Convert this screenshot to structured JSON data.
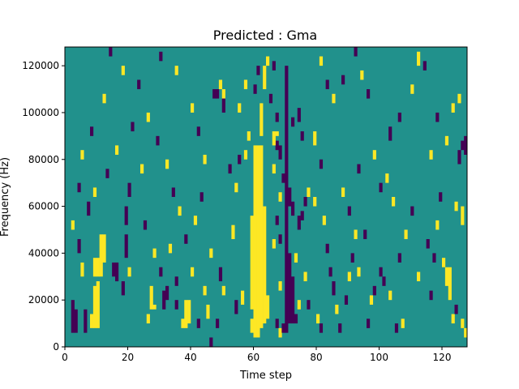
{
  "chart_data": {
    "type": "heatmap",
    "title": "Predicted : Gma",
    "xlabel": "Time step",
    "ylabel": "Frequency (Hz)",
    "xlim": [
      0,
      128
    ],
    "ylim": [
      0,
      128000
    ],
    "x_ticks": [
      0,
      20,
      40,
      60,
      80,
      100,
      120
    ],
    "y_ticks": [
      0,
      20000,
      40000,
      60000,
      80000,
      100000,
      120000
    ],
    "x_tick_labels": [
      "0",
      "20",
      "40",
      "60",
      "80",
      "100",
      "120"
    ],
    "y_tick_labels": [
      "0",
      "20000",
      "40000",
      "60000",
      "80000",
      "100000",
      "120000"
    ],
    "grid": false,
    "colormap": {
      "low": "#440154",
      "mid": "#21918c",
      "high": "#fde725"
    },
    "background_value": 0,
    "cell_values": "1 = high (yellow), -1 = low (purple); cells are 1 time step by 2000 Hz",
    "cells": [
      {
        "x": 60,
        "y0": 4000,
        "y1": 86000,
        "v": 1
      },
      {
        "x": 61,
        "y0": 4000,
        "y1": 86000,
        "v": 1
      },
      {
        "x": 62,
        "y0": 8000,
        "y1": 86000,
        "v": 1
      },
      {
        "x": 63,
        "y0": 10000,
        "y1": 60000,
        "v": 1
      },
      {
        "x": 59,
        "y0": 16000,
        "y1": 56000,
        "v": 1
      },
      {
        "x": 62,
        "y0": 90000,
        "y1": 104000,
        "v": 1
      },
      {
        "x": 63,
        "y0": 110000,
        "y1": 120000,
        "v": 1
      },
      {
        "x": 59,
        "y0": 6000,
        "y1": 12000,
        "v": 1
      },
      {
        "x": 64,
        "y0": 12000,
        "y1": 22000,
        "v": 1
      },
      {
        "x": 58,
        "y0": 88000,
        "y1": 92000,
        "v": 1
      },
      {
        "x": 70,
        "y0": 6000,
        "y1": 120000,
        "v": -1
      },
      {
        "x": 71,
        "y0": 10000,
        "y1": 40000,
        "v": -1
      },
      {
        "x": 72,
        "y0": 10000,
        "y1": 30000,
        "v": -1
      },
      {
        "x": 69,
        "y0": 70000,
        "y1": 74000,
        "v": -1
      },
      {
        "x": 68,
        "y0": 80000,
        "y1": 86000,
        "v": -1
      },
      {
        "x": 71,
        "y0": 60000,
        "y1": 68000,
        "v": -1
      },
      {
        "x": 72,
        "y0": 56000,
        "y1": 62000,
        "v": -1
      },
      {
        "x": 67,
        "y0": 84000,
        "y1": 88000,
        "v": -1
      },
      {
        "x": 66,
        "y0": 86000,
        "y1": 92000,
        "v": 1
      },
      {
        "x": 67,
        "y0": 90000,
        "y1": 92000,
        "v": 1
      },
      {
        "x": 2,
        "y0": 6000,
        "y1": 20000,
        "v": -1
      },
      {
        "x": 3,
        "y0": 6000,
        "y1": 16000,
        "v": -1
      },
      {
        "x": 6,
        "y0": 6000,
        "y1": 16000,
        "v": -1
      },
      {
        "x": 8,
        "y0": 8000,
        "y1": 14000,
        "v": 1
      },
      {
        "x": 9,
        "y0": 8000,
        "y1": 26000,
        "v": 1
      },
      {
        "x": 10,
        "y0": 8000,
        "y1": 28000,
        "v": 1
      },
      {
        "x": 9,
        "y0": 30000,
        "y1": 38000,
        "v": 1
      },
      {
        "x": 10,
        "y0": 30000,
        "y1": 38000,
        "v": 1
      },
      {
        "x": 11,
        "y0": 30000,
        "y1": 48000,
        "v": 1
      },
      {
        "x": 12,
        "y0": 36000,
        "y1": 48000,
        "v": 1
      },
      {
        "x": 15,
        "y0": 30000,
        "y1": 36000,
        "v": -1
      },
      {
        "x": 16,
        "y0": 28000,
        "y1": 36000,
        "v": -1
      },
      {
        "x": 18,
        "y0": 22000,
        "y1": 28000,
        "v": -1
      },
      {
        "x": 19,
        "y0": 38000,
        "y1": 48000,
        "v": -1
      },
      {
        "x": 19,
        "y0": 52000,
        "y1": 60000,
        "v": -1
      },
      {
        "x": 20,
        "y0": 64000,
        "y1": 70000,
        "v": -1
      },
      {
        "x": 20,
        "y0": 30000,
        "y1": 34000,
        "v": 1
      },
      {
        "x": 26,
        "y0": 10000,
        "y1": 14000,
        "v": 1
      },
      {
        "x": 27,
        "y0": 16000,
        "y1": 26000,
        "v": 1
      },
      {
        "x": 28,
        "y0": 16000,
        "y1": 18000,
        "v": 1
      },
      {
        "x": 31,
        "y0": 16000,
        "y1": 24000,
        "v": -1
      },
      {
        "x": 32,
        "y0": 20000,
        "y1": 26000,
        "v": -1
      },
      {
        "x": 35,
        "y0": 16000,
        "y1": 20000,
        "v": -1
      },
      {
        "x": 37,
        "y0": 8000,
        "y1": 12000,
        "v": 1
      },
      {
        "x": 38,
        "y0": 8000,
        "y1": 20000,
        "v": 1
      },
      {
        "x": 39,
        "y0": 10000,
        "y1": 20000,
        "v": 1
      },
      {
        "x": 40,
        "y0": 30000,
        "y1": 34000,
        "v": 1
      },
      {
        "x": 45,
        "y0": 12000,
        "y1": 18000,
        "v": 1
      },
      {
        "x": 46,
        "y0": 0,
        "y1": 4000,
        "v": -1
      },
      {
        "x": 48,
        "y0": 8000,
        "y1": 12000,
        "v": -1
      },
      {
        "x": 49,
        "y0": 28000,
        "y1": 34000,
        "v": -1
      },
      {
        "x": 50,
        "y0": 22000,
        "y1": 26000,
        "v": 1
      },
      {
        "x": 46,
        "y0": 38000,
        "y1": 42000,
        "v": 1
      },
      {
        "x": 53,
        "y0": 46000,
        "y1": 52000,
        "v": 1
      },
      {
        "x": 54,
        "y0": 14000,
        "y1": 20000,
        "v": -1
      },
      {
        "x": 56,
        "y0": 18000,
        "y1": 24000,
        "v": 1
      },
      {
        "x": 54,
        "y0": 66000,
        "y1": 70000,
        "v": 1
      },
      {
        "x": 52,
        "y0": 74000,
        "y1": 78000,
        "v": -1
      },
      {
        "x": 55,
        "y0": 78000,
        "y1": 82000,
        "v": -1
      },
      {
        "x": 57,
        "y0": 80000,
        "y1": 84000,
        "v": 1
      },
      {
        "x": 47,
        "y0": 106000,
        "y1": 110000,
        "v": -1
      },
      {
        "x": 48,
        "y0": 106000,
        "y1": 110000,
        "v": -1
      },
      {
        "x": 50,
        "y0": 106000,
        "y1": 110000,
        "v": 1
      },
      {
        "x": 49,
        "y0": 110000,
        "y1": 114000,
        "v": 1
      },
      {
        "x": 50,
        "y0": 100000,
        "y1": 106000,
        "v": -1
      },
      {
        "x": 55,
        "y0": 100000,
        "y1": 104000,
        "v": 1
      },
      {
        "x": 57,
        "y0": 110000,
        "y1": 114000,
        "v": 1
      },
      {
        "x": 60,
        "y0": 108000,
        "y1": 112000,
        "v": -1
      },
      {
        "x": 61,
        "y0": 116000,
        "y1": 120000,
        "v": -1
      },
      {
        "x": 64,
        "y0": 120000,
        "y1": 124000,
        "v": 1
      },
      {
        "x": 66,
        "y0": 118000,
        "y1": 122000,
        "v": -1
      },
      {
        "x": 65,
        "y0": 104000,
        "y1": 108000,
        "v": -1
      },
      {
        "x": 67,
        "y0": 96000,
        "y1": 100000,
        "v": -1
      },
      {
        "x": 66,
        "y0": 74000,
        "y1": 78000,
        "v": 1
      },
      {
        "x": 68,
        "y0": 62000,
        "y1": 66000,
        "v": 1
      },
      {
        "x": 67,
        "y0": 52000,
        "y1": 56000,
        "v": -1
      },
      {
        "x": 68,
        "y0": 44000,
        "y1": 48000,
        "v": -1
      },
      {
        "x": 66,
        "y0": 42000,
        "y1": 46000,
        "v": 1
      },
      {
        "x": 68,
        "y0": 24000,
        "y1": 28000,
        "v": 1
      },
      {
        "x": 67,
        "y0": 8000,
        "y1": 12000,
        "v": -1
      },
      {
        "x": 68,
        "y0": 4000,
        "y1": 8000,
        "v": 1
      },
      {
        "x": 69,
        "y0": 6000,
        "y1": 10000,
        "v": -1
      },
      {
        "x": 73,
        "y0": 10000,
        "y1": 14000,
        "v": -1
      },
      {
        "x": 74,
        "y0": 16000,
        "y1": 20000,
        "v": 1
      },
      {
        "x": 73,
        "y0": 36000,
        "y1": 40000,
        "v": 1
      },
      {
        "x": 74,
        "y0": 50000,
        "y1": 56000,
        "v": -1
      },
      {
        "x": 75,
        "y0": 54000,
        "y1": 58000,
        "v": -1
      },
      {
        "x": 76,
        "y0": 60000,
        "y1": 64000,
        "v": -1
      },
      {
        "x": 74,
        "y0": 96000,
        "y1": 102000,
        "v": -1
      },
      {
        "x": 75,
        "y0": 88000,
        "y1": 92000,
        "v": -1
      },
      {
        "x": 72,
        "y0": 94000,
        "y1": 98000,
        "v": -1
      },
      {
        "x": 77,
        "y0": 64000,
        "y1": 68000,
        "v": 1
      },
      {
        "x": 79,
        "y0": 60000,
        "y1": 64000,
        "v": 1
      },
      {
        "x": 76,
        "y0": 28000,
        "y1": 32000,
        "v": 1
      },
      {
        "x": 77,
        "y0": 16000,
        "y1": 20000,
        "v": -1
      },
      {
        "x": 80,
        "y0": 10000,
        "y1": 14000,
        "v": 1
      },
      {
        "x": 81,
        "y0": 6000,
        "y1": 10000,
        "v": -1
      },
      {
        "x": 82,
        "y0": 52000,
        "y1": 56000,
        "v": 1
      },
      {
        "x": 83,
        "y0": 40000,
        "y1": 44000,
        "v": -1
      },
      {
        "x": 84,
        "y0": 30000,
        "y1": 34000,
        "v": -1
      },
      {
        "x": 85,
        "y0": 22000,
        "y1": 28000,
        "v": -1
      },
      {
        "x": 86,
        "y0": 14000,
        "y1": 18000,
        "v": 1
      },
      {
        "x": 87,
        "y0": 6000,
        "y1": 10000,
        "v": -1
      },
      {
        "x": 89,
        "y0": 18000,
        "y1": 22000,
        "v": -1
      },
      {
        "x": 90,
        "y0": 28000,
        "y1": 32000,
        "v": 1
      },
      {
        "x": 91,
        "y0": 36000,
        "y1": 40000,
        "v": -1
      },
      {
        "x": 92,
        "y0": 46000,
        "y1": 50000,
        "v": 1
      },
      {
        "x": 93,
        "y0": 30000,
        "y1": 34000,
        "v": 1
      },
      {
        "x": 96,
        "y0": 8000,
        "y1": 12000,
        "v": -1
      },
      {
        "x": 97,
        "y0": 18000,
        "y1": 22000,
        "v": 1
      },
      {
        "x": 98,
        "y0": 22000,
        "y1": 26000,
        "v": -1
      },
      {
        "x": 100,
        "y0": 30000,
        "y1": 34000,
        "v": -1
      },
      {
        "x": 101,
        "y0": 26000,
        "y1": 30000,
        "v": -1
      },
      {
        "x": 103,
        "y0": 20000,
        "y1": 24000,
        "v": 1
      },
      {
        "x": 105,
        "y0": 6000,
        "y1": 10000,
        "v": -1
      },
      {
        "x": 107,
        "y0": 8000,
        "y1": 12000,
        "v": 1
      },
      {
        "x": 108,
        "y0": 46000,
        "y1": 50000,
        "v": 1
      },
      {
        "x": 110,
        "y0": 56000,
        "y1": 60000,
        "v": -1
      },
      {
        "x": 115,
        "y0": 42000,
        "y1": 46000,
        "v": -1
      },
      {
        "x": 117,
        "y0": 36000,
        "y1": 40000,
        "v": -1
      },
      {
        "x": 120,
        "y0": 34000,
        "y1": 38000,
        "v": 1
      },
      {
        "x": 121,
        "y0": 26000,
        "y1": 34000,
        "v": 1
      },
      {
        "x": 122,
        "y0": 20000,
        "y1": 34000,
        "v": 1
      },
      {
        "x": 123,
        "y0": 10000,
        "y1": 14000,
        "v": 1
      },
      {
        "x": 124,
        "y0": 14000,
        "y1": 18000,
        "v": -1
      },
      {
        "x": 126,
        "y0": 8000,
        "y1": 12000,
        "v": 1
      },
      {
        "x": 127,
        "y0": 4000,
        "y1": 8000,
        "v": 1
      },
      {
        "x": 126,
        "y0": 52000,
        "y1": 60000,
        "v": 1
      },
      {
        "x": 124,
        "y0": 58000,
        "y1": 62000,
        "v": 1
      },
      {
        "x": 125,
        "y0": 78000,
        "y1": 84000,
        "v": -1
      },
      {
        "x": 126,
        "y0": 84000,
        "y1": 88000,
        "v": -1
      },
      {
        "x": 127,
        "y0": 82000,
        "y1": 90000,
        "v": -1
      },
      {
        "x": 125,
        "y0": 104000,
        "y1": 108000,
        "v": 1
      },
      {
        "x": 123,
        "y0": 100000,
        "y1": 104000,
        "v": 1
      },
      {
        "x": 121,
        "y0": 86000,
        "y1": 90000,
        "v": 1
      },
      {
        "x": 112,
        "y0": 120000,
        "y1": 126000,
        "v": 1
      },
      {
        "x": 114,
        "y0": 118000,
        "y1": 122000,
        "v": -1
      },
      {
        "x": 110,
        "y0": 108000,
        "y1": 112000,
        "v": 1
      },
      {
        "x": 106,
        "y0": 96000,
        "y1": 100000,
        "v": -1
      },
      {
        "x": 103,
        "y0": 88000,
        "y1": 94000,
        "v": -1
      },
      {
        "x": 102,
        "y0": 70000,
        "y1": 74000,
        "v": 1
      },
      {
        "x": 100,
        "y0": 66000,
        "y1": 70000,
        "v": -1
      },
      {
        "x": 98,
        "y0": 80000,
        "y1": 84000,
        "v": 1
      },
      {
        "x": 96,
        "y0": 106000,
        "y1": 110000,
        "v": -1
      },
      {
        "x": 94,
        "y0": 114000,
        "y1": 118000,
        "v": 1
      },
      {
        "x": 92,
        "y0": 124000,
        "y1": 128000,
        "v": -1
      },
      {
        "x": 88,
        "y0": 112000,
        "y1": 116000,
        "v": -1
      },
      {
        "x": 85,
        "y0": 104000,
        "y1": 108000,
        "v": 1
      },
      {
        "x": 83,
        "y0": 110000,
        "y1": 114000,
        "v": -1
      },
      {
        "x": 81,
        "y0": 120000,
        "y1": 124000,
        "v": 1
      },
      {
        "x": 79,
        "y0": 86000,
        "y1": 92000,
        "v": 1
      },
      {
        "x": 81,
        "y0": 76000,
        "y1": 80000,
        "v": -1
      },
      {
        "x": 88,
        "y0": 64000,
        "y1": 68000,
        "v": 1
      },
      {
        "x": 90,
        "y0": 56000,
        "y1": 60000,
        "v": -1
      },
      {
        "x": 93,
        "y0": 74000,
        "y1": 78000,
        "v": -1
      },
      {
        "x": 95,
        "y0": 46000,
        "y1": 50000,
        "v": -1
      },
      {
        "x": 104,
        "y0": 60000,
        "y1": 64000,
        "v": 1
      },
      {
        "x": 106,
        "y0": 36000,
        "y1": 40000,
        "v": -1
      },
      {
        "x": 112,
        "y0": 28000,
        "y1": 32000,
        "v": 1
      },
      {
        "x": 116,
        "y0": 20000,
        "y1": 24000,
        "v": -1
      },
      {
        "x": 118,
        "y0": 50000,
        "y1": 54000,
        "v": 1
      },
      {
        "x": 119,
        "y0": 62000,
        "y1": 66000,
        "v": -1
      },
      {
        "x": 116,
        "y0": 80000,
        "y1": 84000,
        "v": 1
      },
      {
        "x": 118,
        "y0": 96000,
        "y1": 100000,
        "v": -1
      },
      {
        "x": 23,
        "y0": 110000,
        "y1": 114000,
        "v": -1
      },
      {
        "x": 26,
        "y0": 96000,
        "y1": 100000,
        "v": 1
      },
      {
        "x": 29,
        "y0": 86000,
        "y1": 90000,
        "v": -1
      },
      {
        "x": 32,
        "y0": 76000,
        "y1": 80000,
        "v": 1
      },
      {
        "x": 34,
        "y0": 64000,
        "y1": 68000,
        "v": -1
      },
      {
        "x": 36,
        "y0": 56000,
        "y1": 60000,
        "v": 1
      },
      {
        "x": 38,
        "y0": 44000,
        "y1": 48000,
        "v": -1
      },
      {
        "x": 41,
        "y0": 52000,
        "y1": 56000,
        "v": 1
      },
      {
        "x": 43,
        "y0": 62000,
        "y1": 66000,
        "v": -1
      },
      {
        "x": 44,
        "y0": 78000,
        "y1": 82000,
        "v": 1
      },
      {
        "x": 42,
        "y0": 90000,
        "y1": 94000,
        "v": -1
      },
      {
        "x": 40,
        "y0": 100000,
        "y1": 104000,
        "v": 1
      },
      {
        "x": 35,
        "y0": 116000,
        "y1": 120000,
        "v": 1
      },
      {
        "x": 30,
        "y0": 122000,
        "y1": 126000,
        "v": -1
      },
      {
        "x": 18,
        "y0": 116000,
        "y1": 120000,
        "v": 1
      },
      {
        "x": 14,
        "y0": 124000,
        "y1": 128000,
        "v": -1
      },
      {
        "x": 12,
        "y0": 104000,
        "y1": 108000,
        "v": 1
      },
      {
        "x": 8,
        "y0": 90000,
        "y1": 94000,
        "v": -1
      },
      {
        "x": 5,
        "y0": 80000,
        "y1": 84000,
        "v": 1
      },
      {
        "x": 4,
        "y0": 66000,
        "y1": 70000,
        "v": -1
      },
      {
        "x": 2,
        "y0": 50000,
        "y1": 54000,
        "v": 1
      },
      {
        "x": 4,
        "y0": 40000,
        "y1": 46000,
        "v": -1
      },
      {
        "x": 5,
        "y0": 30000,
        "y1": 36000,
        "v": 1
      },
      {
        "x": 7,
        "y0": 56000,
        "y1": 62000,
        "v": -1
      },
      {
        "x": 9,
        "y0": 64000,
        "y1": 68000,
        "v": 1
      },
      {
        "x": 13,
        "y0": 72000,
        "y1": 76000,
        "v": -1
      },
      {
        "x": 16,
        "y0": 82000,
        "y1": 86000,
        "v": 1
      },
      {
        "x": 21,
        "y0": 92000,
        "y1": 96000,
        "v": -1
      },
      {
        "x": 24,
        "y0": 74000,
        "y1": 78000,
        "v": 1
      },
      {
        "x": 25,
        "y0": 50000,
        "y1": 54000,
        "v": -1
      },
      {
        "x": 28,
        "y0": 38000,
        "y1": 42000,
        "v": 1
      },
      {
        "x": 30,
        "y0": 30000,
        "y1": 34000,
        "v": -1
      },
      {
        "x": 33,
        "y0": 40000,
        "y1": 44000,
        "v": 1
      },
      {
        "x": 35,
        "y0": 26000,
        "y1": 30000,
        "v": -1
      },
      {
        "x": 42,
        "y0": 8000,
        "y1": 12000,
        "v": -1
      },
      {
        "x": 44,
        "y0": 22000,
        "y1": 26000,
        "v": 1
      }
    ]
  }
}
